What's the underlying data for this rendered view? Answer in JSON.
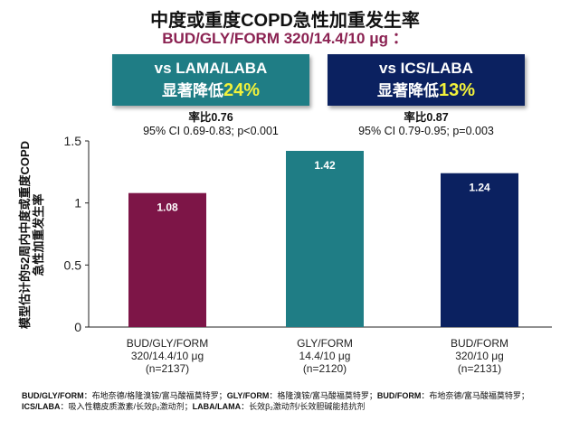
{
  "title": "中度或重度COPD急性加重发生率",
  "subtitle": "BUD/GLY/FORM 320/14.4/10 μg  ：",
  "comparisons": [
    {
      "label": "vs LAMA/LABA",
      "reduction_prefix": "显著降低",
      "reduction": "24%",
      "color": "#1f7d85",
      "rate_ratio": "率比0.76",
      "ci": "95% CI 0.69-0.83; p<0.001"
    },
    {
      "label": "vs ICS/LABA",
      "reduction_prefix": "显著降低",
      "reduction": "13%",
      "color": "#0b2160",
      "rate_ratio": "率比0.87",
      "ci": "95% CI 0.79-0.95; p=0.003"
    }
  ],
  "chart_data": {
    "type": "bar",
    "ylabel": "模型估计的52周内中度或重度COPD急性加重发生率",
    "ylabel_lines": [
      "模型估计的52周内中度或重度COPD",
      "急性加重发生率"
    ],
    "ylim": [
      0,
      1.5
    ],
    "yticks": [
      "0",
      "0.5",
      "1",
      "1.5"
    ],
    "grid": false,
    "categories": [
      [
        "BUD/GLY/FORM",
        "320/14.4/10 μg",
        "(n=2137)"
      ],
      [
        "GLY/FORM",
        "14.4/10 μg",
        "(n=2120)"
      ],
      [
        "BUD/FORM",
        "320/10 μg",
        "(n=2131)"
      ]
    ],
    "values": [
      1.08,
      1.42,
      1.24
    ],
    "data_labels": [
      "1.08",
      "1.42",
      "1.24"
    ],
    "colors": [
      "#7d1547",
      "#1f7d85",
      "#0b2160"
    ]
  },
  "footnote": [
    {
      "abbr": "BUD/GLY/FORM",
      "def": "：布地奈德/格隆溴铵/富马酸福莫特罗；"
    },
    {
      "abbr": "GLY/FORM",
      "def": "：格隆溴铵/富马酸福莫特罗；"
    },
    {
      "abbr": "BUD/FORM",
      "def": "：布地奈德/富马酸福莫特罗；"
    },
    {
      "abbr": "ICS/LABA",
      "def": "：吸入性糖皮质激素/长效β₂激动剂；"
    },
    {
      "abbr": "LABA/LAMA",
      "def": "：长效β₂激动剂/长效胆碱能拮抗剂"
    }
  ]
}
